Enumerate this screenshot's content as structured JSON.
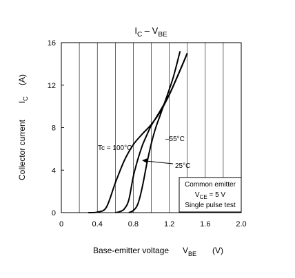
{
  "chart_data": {
    "type": "line",
    "title_main": "I",
    "title_sub1": "C",
    "title_mid": " – V",
    "title_sub2": "BE",
    "xlabel_main": "Base-emitter voltage",
    "xlabel_sym": "V",
    "xlabel_sub": "BE",
    "xlabel_unit": "(V)",
    "ylabel_main": "Collector current",
    "ylabel_sym": "I",
    "ylabel_sub": "C",
    "ylabel_unit": "(A)",
    "xlim": [
      0,
      2.0
    ],
    "ylim": [
      0,
      16
    ],
    "x_ticks": [
      0,
      0.4,
      0.8,
      1.2,
      1.6,
      2.0
    ],
    "x_tick_labels": [
      "0",
      "0.4",
      "0.8",
      "1.2",
      "1.6",
      "2.0"
    ],
    "y_ticks": [
      0,
      4,
      8,
      12,
      16
    ],
    "y_tick_labels": [
      "0",
      "4",
      "8",
      "12",
      "16"
    ],
    "x_grid_step": 0.2,
    "grid": "vertical",
    "series": [
      {
        "label_text": "Tc = 100°C",
        "x": [
          0.3,
          0.4,
          0.5,
          0.6,
          0.7,
          0.8,
          0.9,
          1.0,
          1.1,
          1.2,
          1.3,
          1.4
        ],
        "y": [
          0,
          0.05,
          0.5,
          2.8,
          4.9,
          6.4,
          7.4,
          8.3,
          9.5,
          11.1,
          13.0,
          15.0
        ]
      },
      {
        "label_text": "25°C",
        "x": [
          0.6,
          0.65,
          0.7,
          0.75,
          0.8,
          0.85,
          0.9,
          0.95,
          1.0,
          1.1,
          1.2,
          1.3,
          1.4
        ],
        "y": [
          0,
          0.1,
          0.35,
          1.2,
          3.4,
          5.0,
          6.3,
          7.3,
          8.2,
          9.6,
          11.1,
          13.0,
          15.0
        ]
      },
      {
        "label_text": "–55°C",
        "x": [
          0.75,
          0.8,
          0.85,
          0.9,
          0.95,
          1.0,
          1.05,
          1.1,
          1.15,
          1.2,
          1.25,
          1.32
        ],
        "y": [
          0,
          0.2,
          0.8,
          2.4,
          4.6,
          6.5,
          8.0,
          9.2,
          10.4,
          11.6,
          12.9,
          15.2
        ]
      }
    ],
    "legend_box": {
      "line1": "Common emitter",
      "line2_sym": "V",
      "line2_sub": "CE",
      "line2_rest": " = 5 V",
      "line3": "Single pulse test"
    }
  }
}
